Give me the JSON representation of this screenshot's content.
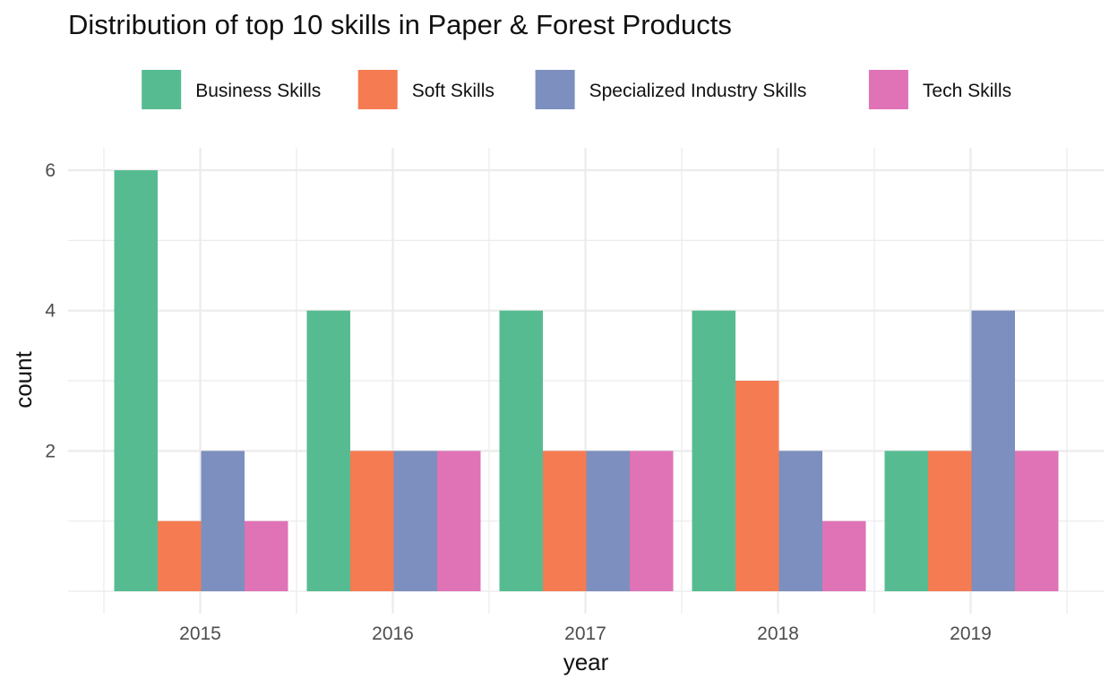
{
  "chart_data": {
    "type": "bar",
    "title": "Distribution of top 10 skills in Paper & Forest Products",
    "xlabel": "year",
    "ylabel": "count",
    "categories": [
      "2015",
      "2016",
      "2017",
      "2018",
      "2019"
    ],
    "y_ticks": [
      "2",
      "4",
      "6"
    ],
    "ylim": [
      0,
      6.3
    ],
    "grid": true,
    "legend_position": "top",
    "series": [
      {
        "name": "Business Skills",
        "color": "#57BB92",
        "values": [
          6,
          4,
          4,
          4,
          2
        ]
      },
      {
        "name": "Soft Skills",
        "color": "#F57B53",
        "values": [
          1,
          2,
          2,
          3,
          2
        ]
      },
      {
        "name": "Specialized Industry Skills",
        "color": "#7D8FBE",
        "values": [
          2,
          2,
          2,
          2,
          4
        ]
      },
      {
        "name": "Tech Skills",
        "color": "#DF73B6",
        "values": [
          1,
          2,
          2,
          1,
          2
        ]
      }
    ]
  }
}
